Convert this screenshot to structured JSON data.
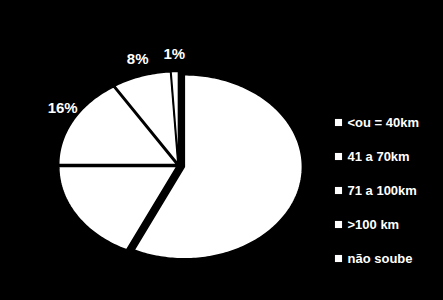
{
  "chart_data": {
    "type": "pie",
    "categories": [
      "<ou = 40km",
      "41 a 70km",
      "71 a 100km",
      ">100 km",
      "não soube"
    ],
    "values": [
      57,
      18,
      16,
      8,
      1
    ],
    "value_labels": [
      null,
      null,
      "16%",
      "8%",
      "1%"
    ],
    "colors": [
      "#ffffff",
      "#ffffff",
      "#ffffff",
      "#ffffff",
      "#ffffff"
    ],
    "data_labels": true,
    "legend": "right"
  }
}
